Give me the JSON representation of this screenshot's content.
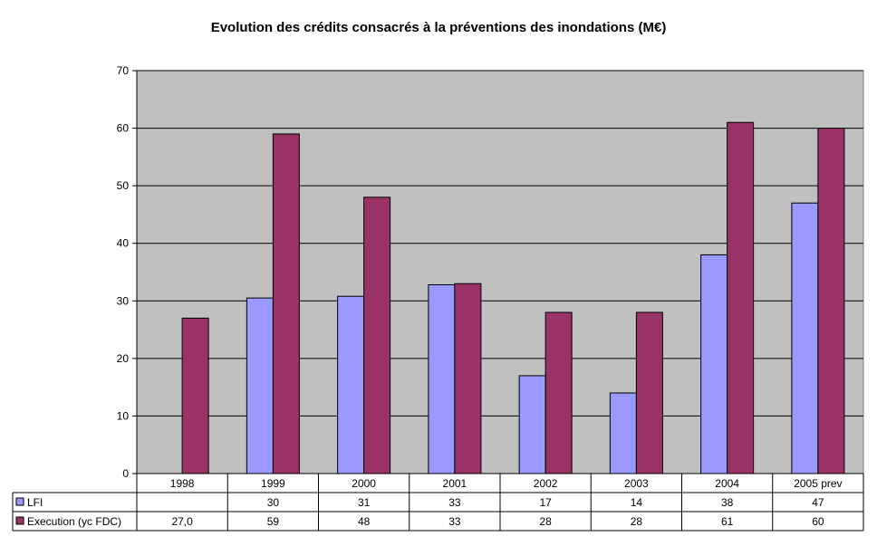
{
  "chart_data": {
    "type": "bar",
    "title": "Evolution des crédits consacrés à la préventions des inondations (M€)",
    "categories": [
      "1998",
      "1999",
      "2000",
      "2001",
      "2002",
      "2003",
      "2004",
      "2005 prev"
    ],
    "ylim": [
      0,
      70
    ],
    "yticks": [
      0,
      10,
      20,
      30,
      40,
      50,
      60,
      70
    ],
    "grid": true,
    "legend": "data-table",
    "series": [
      {
        "name": "LFI",
        "values": [
          null,
          30.5,
          30.8,
          32.8,
          17,
          14,
          38,
          47
        ],
        "table_labels": [
          "",
          "30",
          "31",
          "33",
          "17",
          "14",
          "38",
          "47"
        ],
        "color": "#9999FF"
      },
      {
        "name": "Execution (yc FDC)",
        "values": [
          27,
          59,
          48,
          33,
          28,
          28,
          61,
          60
        ],
        "table_labels": [
          "27,0",
          "59",
          "48",
          "33",
          "28",
          "28",
          "61",
          "60"
        ],
        "color": "#993366"
      }
    ],
    "plot_background": "#C0C0C0"
  }
}
